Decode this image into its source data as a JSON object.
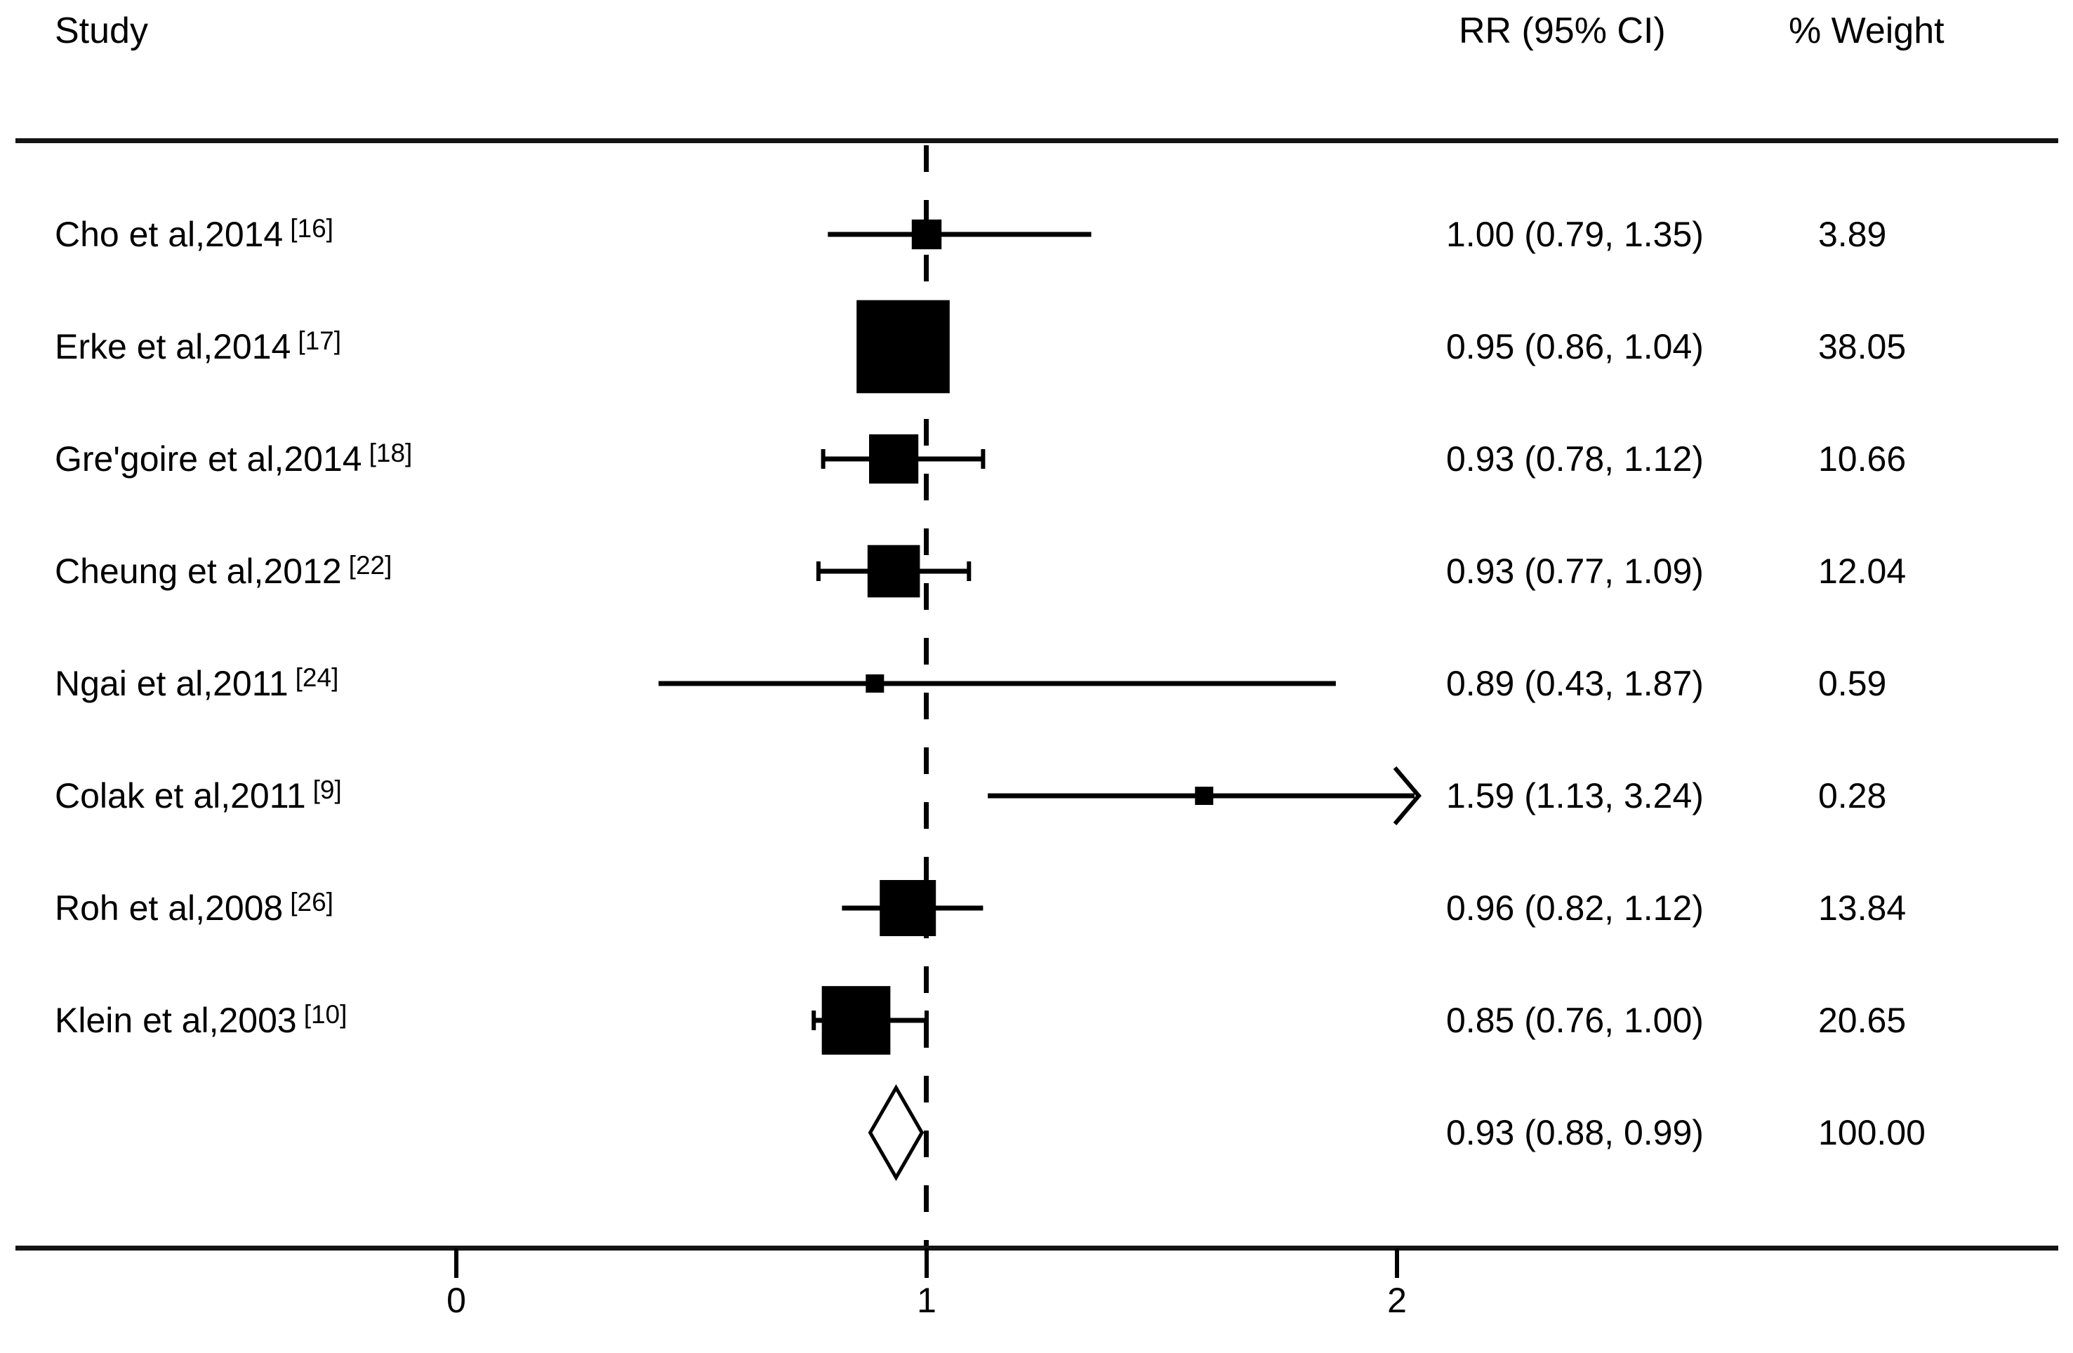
{
  "chart_data": {
    "type": "forest",
    "columns": {
      "study": "Study",
      "rr_ci": "RR (95% CI)",
      "weight": "% Weight"
    },
    "axis": {
      "ticks": [
        0,
        1,
        2
      ],
      "tick_labels": [
        "0",
        "1",
        "2"
      ],
      "ref_line": 1,
      "min": 0,
      "max": 2.05,
      "scale": "linear"
    },
    "studies": [
      {
        "label": "Cho et al,2014",
        "ref": "[16]",
        "rr": 1.0,
        "ci_low": 0.79,
        "ci_high": 1.35,
        "rr_text": "1.00 (0.79, 1.35)",
        "weight": 3.89,
        "weight_text": "3.89",
        "caps": false,
        "clipped": false
      },
      {
        "label": "Erke et al,2014",
        "ref": "[17]",
        "rr": 0.95,
        "ci_low": 0.86,
        "ci_high": 1.04,
        "rr_text": "0.95 (0.86, 1.04)",
        "weight": 38.05,
        "weight_text": "38.05",
        "caps": true,
        "clipped": false
      },
      {
        "label": "Gre'goire et al,2014",
        "ref": "[18]",
        "rr": 0.93,
        "ci_low": 0.78,
        "ci_high": 1.12,
        "rr_text": "0.93 (0.78, 1.12)",
        "weight": 10.66,
        "weight_text": "10.66",
        "caps": true,
        "clipped": false
      },
      {
        "label": "Cheung et al,2012",
        "ref": "[22]",
        "rr": 0.93,
        "ci_low": 0.77,
        "ci_high": 1.09,
        "rr_text": "0.93 (0.77, 1.09)",
        "weight": 12.04,
        "weight_text": "12.04",
        "caps": true,
        "clipped": false
      },
      {
        "label": "Ngai et al,2011",
        "ref": "[24]",
        "rr": 0.89,
        "ci_low": 0.43,
        "ci_high": 1.87,
        "rr_text": "0.89 (0.43, 1.87)",
        "weight": 0.59,
        "weight_text": "0.59",
        "caps": false,
        "clipped": false
      },
      {
        "label": "Colak et al,2011",
        "ref": "[9]",
        "rr": 1.59,
        "ci_low": 1.13,
        "ci_high": 3.24,
        "rr_text": "1.59 (1.13, 3.24)",
        "weight": 0.28,
        "weight_text": "0.28",
        "caps": false,
        "clipped": true
      },
      {
        "label": "Roh et al,2008",
        "ref": "[26]",
        "rr": 0.96,
        "ci_low": 0.82,
        "ci_high": 1.12,
        "rr_text": "0.96 (0.82, 1.12)",
        "weight": 13.84,
        "weight_text": "13.84",
        "caps": false,
        "clipped": false
      },
      {
        "label": "Klein et al,2003",
        "ref": "[10]",
        "rr": 0.85,
        "ci_low": 0.76,
        "ci_high": 1.0,
        "rr_text": "0.85 (0.76, 1.00)",
        "weight": 20.65,
        "weight_text": "20.65",
        "caps": true,
        "clipped": false
      }
    ],
    "overall": {
      "rr": 0.93,
      "ci_low": 0.88,
      "ci_high": 0.99,
      "rr_text": "0.93 (0.88, 0.99)",
      "weight_text": "100.00"
    },
    "colors": {
      "marker": "#000000",
      "line": "#141414",
      "diamond_fill": "#ffffff",
      "background": "#ffffff"
    }
  }
}
